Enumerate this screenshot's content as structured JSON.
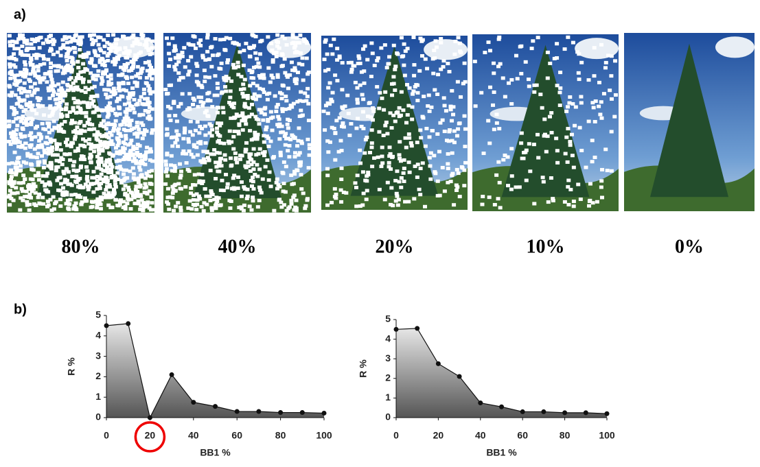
{
  "panel_labels": [
    "a)",
    "b)"
  ],
  "images": [
    {
      "caption": "80%"
    },
    {
      "caption": "40%"
    },
    {
      "caption": "20%"
    },
    {
      "caption": "10%"
    },
    {
      "caption": "0%"
    }
  ],
  "chart_data": [
    {
      "type": "area",
      "xlabel": "BB1 %",
      "ylabel": "R %",
      "x": [
        0,
        10,
        20,
        30,
        40,
        50,
        60,
        70,
        80,
        90,
        100
      ],
      "values": [
        4.5,
        4.6,
        0,
        2.1,
        0.75,
        0.55,
        0.3,
        0.3,
        0.25,
        0.25,
        0.22
      ],
      "xlim": [
        0,
        100
      ],
      "xticks": [
        0,
        20,
        40,
        60,
        80,
        100
      ],
      "ylim": [
        0,
        5
      ],
      "yticks": [
        0,
        1,
        2,
        3,
        4,
        5
      ],
      "highlight_x": 20
    },
    {
      "type": "area",
      "xlabel": "BB1 %",
      "ylabel": "R %",
      "x": [
        0,
        10,
        20,
        30,
        40,
        50,
        60,
        70,
        80,
        90,
        100
      ],
      "values": [
        4.5,
        4.55,
        2.75,
        2.1,
        0.75,
        0.55,
        0.3,
        0.3,
        0.25,
        0.25,
        0.2
      ],
      "xlim": [
        0,
        100
      ],
      "xticks": [
        0,
        20,
        40,
        60,
        80,
        100
      ],
      "ylim": [
        0,
        5
      ],
      "yticks": [
        0,
        1,
        2,
        3,
        4,
        5
      ]
    }
  ]
}
